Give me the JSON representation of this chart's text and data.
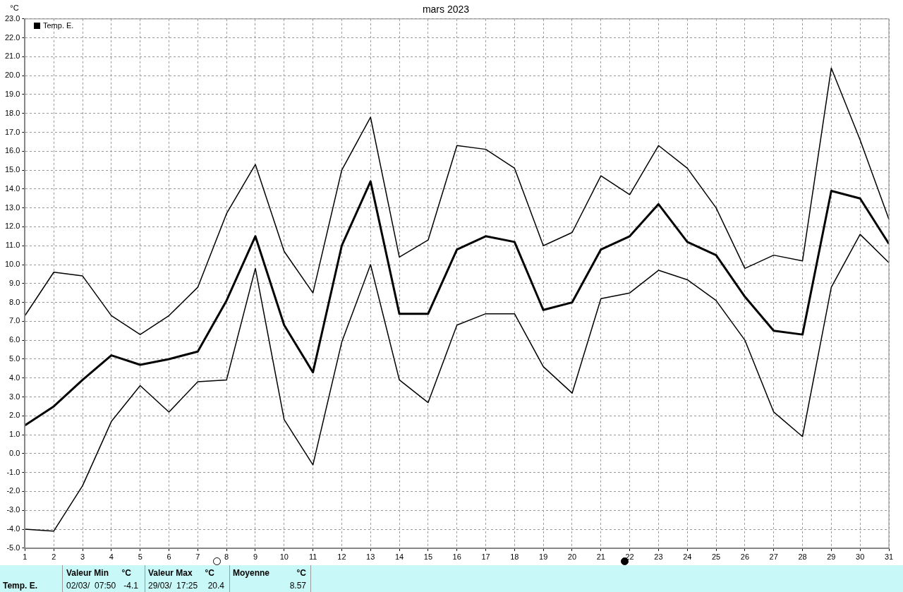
{
  "chart_data": {
    "type": "line",
    "title": "mars 2023",
    "ylabel": "°C",
    "x": [
      1,
      2,
      3,
      4,
      5,
      6,
      7,
      8,
      9,
      10,
      11,
      12,
      13,
      14,
      15,
      16,
      17,
      18,
      19,
      20,
      21,
      22,
      23,
      24,
      25,
      26,
      27,
      28,
      29,
      30,
      31
    ],
    "xlim": [
      1,
      31
    ],
    "xticks": [
      1,
      2,
      3,
      4,
      5,
      6,
      7,
      8,
      9,
      10,
      11,
      12,
      13,
      14,
      15,
      16,
      17,
      18,
      19,
      20,
      21,
      22,
      23,
      24,
      25,
      26,
      27,
      28,
      29,
      30,
      31
    ],
    "ylim": [
      -5,
      23
    ],
    "yticks": [
      {
        "value": -5,
        "label": "-5.0"
      },
      {
        "value": -4,
        "label": "-4.0"
      },
      {
        "value": -3,
        "label": "-3.0"
      },
      {
        "value": -2,
        "label": "-2.0"
      },
      {
        "value": -1,
        "label": "-1.0"
      },
      {
        "value": 0,
        "label": "0.0"
      },
      {
        "value": 1,
        "label": "1.0"
      },
      {
        "value": 2,
        "label": "2.0"
      },
      {
        "value": 3,
        "label": "3.0"
      },
      {
        "value": 4,
        "label": "4.0"
      },
      {
        "value": 5,
        "label": "5.0"
      },
      {
        "value": 6,
        "label": "6.0"
      },
      {
        "value": 7,
        "label": "7.0"
      },
      {
        "value": 8,
        "label": "8.0"
      },
      {
        "value": 9,
        "label": "9.0"
      },
      {
        "value": 10,
        "label": "10.0"
      },
      {
        "value": 11,
        "label": "11.0"
      },
      {
        "value": 12,
        "label": "12.0"
      },
      {
        "value": 13,
        "label": "13.0"
      },
      {
        "value": 14,
        "label": "14.0"
      },
      {
        "value": 15,
        "label": "15.0"
      },
      {
        "value": 16,
        "label": "16.0"
      },
      {
        "value": 17,
        "label": "17.0"
      },
      {
        "value": 18,
        "label": "18.0"
      },
      {
        "value": 19,
        "label": "19.0"
      },
      {
        "value": 20,
        "label": "20.0"
      },
      {
        "value": 21,
        "label": "21.0"
      },
      {
        "value": 22,
        "label": "22.0"
      },
      {
        "value": 23,
        "label": "23.0"
      }
    ],
    "series": [
      {
        "color": "#000000",
        "values": [
          7.3,
          9.6,
          9.4,
          7.3,
          6.3,
          7.3,
          8.8,
          12.7,
          15.3,
          10.7,
          8.5,
          15.0,
          17.8,
          10.4,
          11.3,
          16.3,
          16.1,
          15.1,
          11.0,
          11.7,
          14.7,
          13.7,
          16.3,
          15.1,
          13.0,
          9.8,
          10.5,
          10.2,
          20.4,
          16.6,
          12.4
        ]
      },
      {
        "name": "Temp. E.",
        "color": "#000000",
        "values": [
          1.5,
          2.5,
          3.9,
          5.2,
          4.7,
          5.0,
          5.4,
          8.1,
          11.5,
          6.8,
          4.3,
          11.0,
          14.4,
          7.4,
          7.4,
          10.8,
          11.5,
          11.2,
          7.6,
          8.0,
          10.8,
          11.5,
          13.2,
          11.2,
          10.5,
          8.3,
          6.5,
          6.3,
          13.9,
          13.5,
          11.1
        ]
      },
      {
        "color": "#000000",
        "values": [
          -4.0,
          -4.1,
          -1.7,
          1.7,
          3.6,
          2.2,
          3.8,
          3.9,
          9.8,
          1.8,
          -0.6,
          5.9,
          10.0,
          3.9,
          2.7,
          6.8,
          7.4,
          7.4,
          4.6,
          3.2,
          8.2,
          8.5,
          9.7,
          9.2,
          8.1,
          6.0,
          2.2,
          0.9,
          8.8,
          11.6,
          10.1
        ]
      }
    ],
    "grid": true,
    "legend": "top left",
    "marker": "none",
    "line_style": "solid",
    "annotations": [
      "Temp. E.",
      "Valeur Min",
      "°C",
      "02/03/  07:50",
      "-4.1",
      "Valeur Max",
      "°C",
      "29/03/  17:25",
      "20.4",
      "Moyenne",
      "°C",
      "8.57"
    ]
  }
}
